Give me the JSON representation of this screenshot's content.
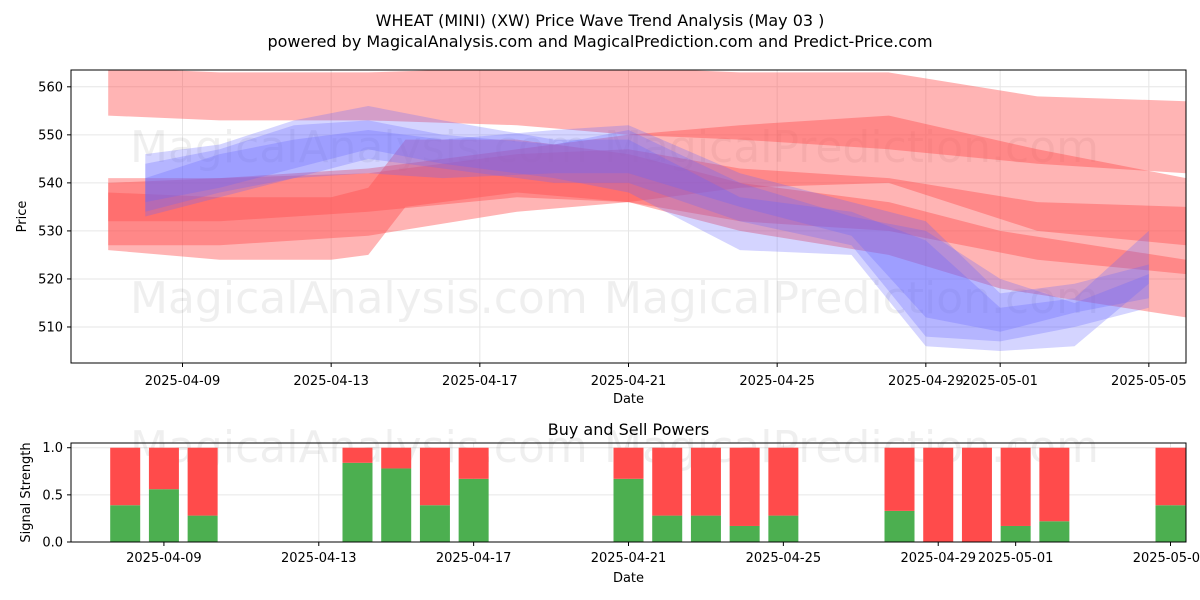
{
  "title": "WHEAT (MINI) (XW) Price Wave Trend Analysis (May 03 )",
  "subtitle": "powered by MagicalAnalysis.com and MagicalPrediction.com and Predict-Price.com",
  "watermarks": [
    "MagicalAnalysis.com",
    "MagicalPrediction.com"
  ],
  "colors": {
    "red_band": "#ff4d4d",
    "blue_band": "#6666ff",
    "buy": "#4caf50",
    "sell": "#ff4b4b",
    "grid": "#e6e6e6"
  },
  "chart_data": [
    {
      "type": "area",
      "title": "",
      "xlabel": "Date",
      "ylabel": "Price",
      "x_ticks": [
        "2025-04-09",
        "2025-04-13",
        "2025-04-17",
        "2025-04-21",
        "2025-04-25",
        "2025-04-29",
        "2025-05-01",
        "2025-05-05"
      ],
      "y_ticks": [
        510,
        520,
        530,
        540,
        550,
        560
      ],
      "xlim": [
        "2025-04-06",
        "2025-05-06"
      ],
      "ylim": [
        502.5,
        563.5
      ],
      "grid": true,
      "series": [
        {
          "kind": "red",
          "x": [
            "2025-04-07",
            "2025-04-10",
            "2025-04-14",
            "2025-04-18",
            "2025-04-21",
            "2025-04-24",
            "2025-04-28",
            "2025-05-02",
            "2025-05-06"
          ],
          "upper": [
            564,
            563,
            563,
            564,
            564,
            563,
            563,
            558,
            557
          ],
          "lower": [
            554,
            553,
            553,
            552,
            550,
            549,
            547,
            544,
            542
          ]
        },
        {
          "kind": "red",
          "x": [
            "2025-04-07",
            "2025-04-10",
            "2025-04-14",
            "2025-04-18",
            "2025-04-21",
            "2025-04-24",
            "2025-04-28",
            "2025-05-02",
            "2025-05-06"
          ],
          "upper": [
            541,
            541,
            542,
            546,
            547,
            543,
            541,
            536,
            535
          ],
          "lower": [
            532,
            532,
            534,
            537,
            536,
            532,
            530,
            524,
            521
          ]
        },
        {
          "kind": "red",
          "x": [
            "2025-04-07",
            "2025-04-10",
            "2025-04-14",
            "2025-04-18",
            "2025-04-21",
            "2025-04-24",
            "2025-04-28",
            "2025-05-02",
            "2025-05-06"
          ],
          "upper": [
            540,
            541,
            543,
            547,
            550,
            552,
            554,
            547,
            541
          ],
          "lower": [
            527,
            527,
            529,
            534,
            536,
            539,
            540,
            530,
            527
          ]
        },
        {
          "kind": "red",
          "x": [
            "2025-04-07",
            "2025-04-10",
            "2025-04-13",
            "2025-04-14",
            "2025-04-15",
            "2025-04-18",
            "2025-04-21",
            "2025-04-24",
            "2025-04-28",
            "2025-05-01",
            "2025-05-06"
          ],
          "upper": [
            538,
            537,
            537,
            539,
            549,
            549,
            546,
            540,
            536,
            530,
            524
          ],
          "lower": [
            526,
            524,
            524,
            525,
            535,
            538,
            536,
            530,
            525,
            518,
            512
          ]
        },
        {
          "kind": "blue",
          "x": [
            "2025-04-08",
            "2025-04-10",
            "2025-04-12",
            "2025-04-14",
            "2025-04-16",
            "2025-04-19",
            "2025-04-21",
            "2025-04-24",
            "2025-04-27",
            "2025-04-29",
            "2025-05-01",
            "2025-05-03",
            "2025-05-05"
          ],
          "upper": [
            544,
            547,
            552,
            553,
            550,
            548,
            551,
            540,
            533,
            530,
            520,
            515,
            521
          ],
          "lower": [
            534,
            538,
            541,
            545,
            543,
            540,
            540,
            532,
            527,
            508,
            507,
            510,
            514
          ]
        },
        {
          "kind": "blue",
          "x": [
            "2025-04-08",
            "2025-04-10",
            "2025-04-12",
            "2025-04-14",
            "2025-04-16",
            "2025-04-19",
            "2025-04-21",
            "2025-04-24",
            "2025-04-27",
            "2025-04-29",
            "2025-05-01",
            "2025-05-03",
            "2025-05-05"
          ],
          "upper": [
            541,
            546,
            549,
            551,
            549,
            551,
            552,
            542,
            536,
            532,
            517,
            519,
            523
          ],
          "lower": [
            533,
            537,
            541,
            542,
            541,
            542,
            542,
            535,
            529,
            512,
            509,
            513,
            516
          ]
        },
        {
          "kind": "blue",
          "x": [
            "2025-04-08",
            "2025-04-10",
            "2025-04-12",
            "2025-04-14",
            "2025-04-16",
            "2025-04-19",
            "2025-04-21",
            "2025-04-24",
            "2025-04-27",
            "2025-04-29",
            "2025-05-01",
            "2025-05-03",
            "2025-05-05"
          ],
          "upper": [
            546,
            548,
            553,
            556,
            553,
            549,
            549,
            537,
            534,
            528,
            514,
            516,
            530
          ],
          "lower": [
            536,
            539,
            543,
            547,
            544,
            541,
            538,
            526,
            525,
            506,
            505,
            506,
            519
          ]
        }
      ]
    },
    {
      "type": "bar",
      "title": "Buy and Sell Powers",
      "xlabel": "Date",
      "ylabel": "Signal Strength",
      "x_ticks": [
        "2025-04-09",
        "2025-04-13",
        "2025-04-17",
        "2025-04-21",
        "2025-04-25",
        "2025-04-29",
        "2025-05-01",
        "2025-05-05"
      ],
      "y_ticks": [
        0.0,
        0.5,
        1.0
      ],
      "ylim": [
        0,
        1.05
      ],
      "categories": [
        "2025-04-08",
        "2025-04-09",
        "2025-04-10",
        "2025-04-14",
        "2025-04-15",
        "2025-04-16",
        "2025-04-17",
        "2025-04-21",
        "2025-04-22",
        "2025-04-23",
        "2025-04-24",
        "2025-04-25",
        "2025-04-28",
        "2025-04-29",
        "2025-04-30",
        "2025-05-01",
        "2025-05-02",
        "2025-05-05"
      ],
      "series": [
        {
          "name": "Buy",
          "values": [
            0.39,
            0.56,
            0.28,
            0.84,
            0.78,
            0.39,
            0.67,
            0.67,
            0.28,
            0.28,
            0.17,
            0.28,
            0.33,
            0.0,
            0.0,
            0.17,
            0.22,
            0.39
          ]
        },
        {
          "name": "Sell",
          "values": [
            0.61,
            0.44,
            0.72,
            0.16,
            0.22,
            0.61,
            0.33,
            0.33,
            0.72,
            0.72,
            0.83,
            0.72,
            0.67,
            1.0,
            1.0,
            0.83,
            0.78,
            0.61
          ]
        }
      ]
    }
  ]
}
